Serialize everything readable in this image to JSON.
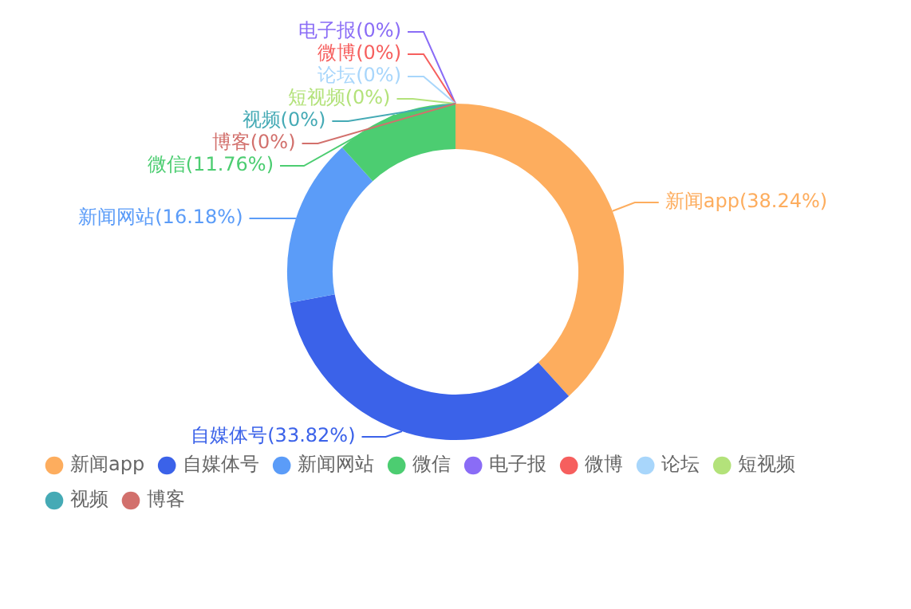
{
  "chart_data": {
    "type": "donut",
    "categories": [
      "新闻app",
      "自媒体号",
      "新闻网站",
      "微信",
      "电子报",
      "微博",
      "论坛",
      "短视频",
      "视频",
      "博客"
    ],
    "values": [
      38.24,
      33.82,
      16.18,
      11.76,
      0,
      0,
      0,
      0,
      0,
      0
    ],
    "value_labels": [
      "(38.24%)",
      "(33.82%)",
      "(16.18%)",
      "(11.76%)",
      "(0%)",
      "(0%)",
      "(0%)",
      "(0%)",
      "(0%)",
      "(0%)"
    ],
    "colors": [
      "#fdad5e",
      "#3b62e9",
      "#5b9cf8",
      "#4ccd71",
      "#8a6cf6",
      "#f65f5e",
      "#a8d6fb",
      "#b3e27a",
      "#45aab5",
      "#d2706c"
    ],
    "legend": "bottom"
  }
}
